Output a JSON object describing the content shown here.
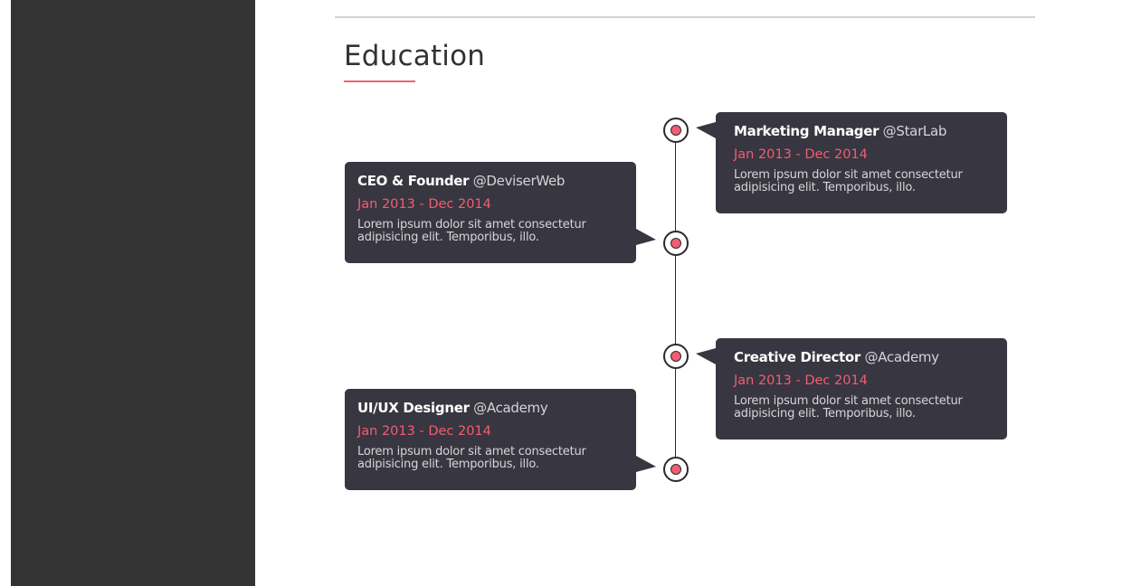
{
  "section": {
    "title": "Education"
  },
  "timeline": {
    "items": [
      {
        "role": "Marketing Manager",
        "org": "@StarLab",
        "dates": "Jan 2013 - Dec 2014",
        "description": "Lorem ipsum dolor sit amet consectetur adipisicing elit. Temporibus, illo."
      },
      {
        "role": "CEO & Founder",
        "org": "@DeviserWeb",
        "dates": "Jan 2013 - Dec 2014",
        "description": "Lorem ipsum dolor sit amet consectetur adipisicing elit. Temporibus, illo."
      },
      {
        "role": "Creative Director",
        "org": "@Academy",
        "dates": "Jan 2013 - Dec 2014",
        "description": "Lorem ipsum dolor sit amet consectetur adipisicing elit. Temporibus, illo."
      },
      {
        "role": "UI/UX Designer",
        "org": "@Academy",
        "dates": "Jan 2013 - Dec 2014",
        "description": "Lorem ipsum dolor sit amet consectetur adipisicing elit. Temporibus, illo."
      }
    ]
  },
  "colors": {
    "sidebar": "#333333",
    "card": "#383640",
    "accent": "#f25d73",
    "underline": "#f0646e",
    "timeline_line": "#2b2b2b"
  }
}
